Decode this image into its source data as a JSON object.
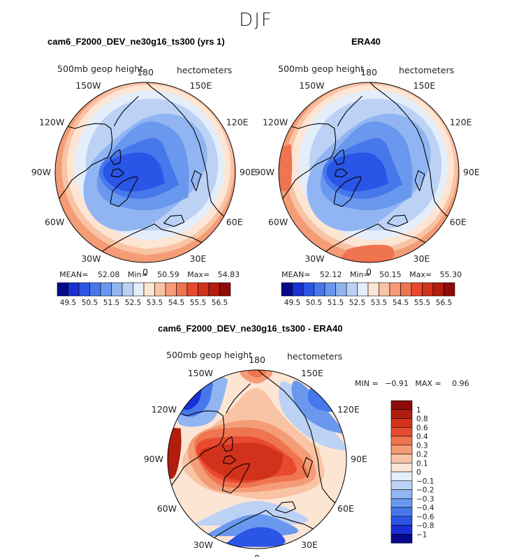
{
  "figure": {
    "title": "DJF",
    "panels": [
      {
        "title": "cam6_F2000_DEV_ne30g16_ts300 (yrs 1)",
        "variable": "500mb geop height",
        "units": "hectometers",
        "stats": {
          "mean_label": "MEAN=",
          "mean": "52.08",
          "min_label": "Min=",
          "min": "50.59",
          "max_label": "Max=",
          "max": "54.83"
        }
      },
      {
        "title": "ERA40",
        "variable": "500mb geop height",
        "units": "hectometers",
        "stats": {
          "mean_label": "MEAN=",
          "mean": "52.12",
          "min_label": "Min=",
          "min": "50.15",
          "max_label": "Max=",
          "max": "55.30"
        }
      },
      {
        "title": "cam6_F2000_DEV_ne30g16_ts300 - ERA40",
        "variable": "500mb geop height",
        "units": "hectometers",
        "stats": {
          "min_label": "MIN =",
          "min": "−0.91",
          "max_label": "MAX =",
          "max": "0.96"
        }
      }
    ],
    "lon_labels": [
      "180",
      "150E",
      "120E",
      "90E",
      "60E",
      "30E",
      "0",
      "30W",
      "60W",
      "90W",
      "120W",
      "150W"
    ]
  },
  "chart_data": [
    {
      "type": "heatmap",
      "projection": "north-polar-stereographic",
      "title": "cam6_F2000_DEV_ne30g16_ts300 (yrs 1)",
      "variable": "500mb geop height",
      "units": "hectometers",
      "mean": 52.08,
      "min": 50.59,
      "max": 54.83,
      "colorbar_ticks": [
        "49.5",
        "50.5",
        "51.5",
        "52.5",
        "53.5",
        "54.5",
        "55.5",
        "56.5"
      ],
      "colorbar_colors": [
        "#08088c",
        "#1a2fd6",
        "#2a55e6",
        "#4678ec",
        "#6a98ef",
        "#91b5f2",
        "#bcd2f5",
        "#e4eefb",
        "#fde5d4",
        "#f9c3a5",
        "#f49c76",
        "#ef7450",
        "#e94a2f",
        "#d2321b",
        "#b11d0f",
        "#8e0b07"
      ]
    },
    {
      "type": "heatmap",
      "projection": "north-polar-stereographic",
      "title": "ERA40",
      "variable": "500mb geop height",
      "units": "hectometers",
      "mean": 52.12,
      "min": 50.15,
      "max": 55.3,
      "colorbar_ticks": [
        "49.5",
        "50.5",
        "51.5",
        "52.5",
        "53.5",
        "54.5",
        "55.5",
        "56.5"
      ],
      "colorbar_colors": [
        "#08088c",
        "#1a2fd6",
        "#2a55e6",
        "#4678ec",
        "#6a98ef",
        "#91b5f2",
        "#bcd2f5",
        "#e4eefb",
        "#fde5d4",
        "#f9c3a5",
        "#f49c76",
        "#ef7450",
        "#e94a2f",
        "#d2321b",
        "#b11d0f",
        "#8e0b07"
      ]
    },
    {
      "type": "heatmap",
      "projection": "north-polar-stereographic",
      "title": "cam6_F2000_DEV_ne30g16_ts300 - ERA40",
      "variable": "500mb geop height",
      "units": "hectometers",
      "min": -0.91,
      "max": 0.96,
      "colorbar_ticks": [
        "1",
        "0.8",
        "0.6",
        "0.4",
        "0.3",
        "0.2",
        "0.1",
        "0",
        "−0.1",
        "−0.2",
        "−0.3",
        "−0.4",
        "−0.6",
        "−0.8",
        "−1"
      ],
      "colorbar_colors": [
        "#8e0b07",
        "#b11d0f",
        "#d2321b",
        "#e94a2f",
        "#ef7450",
        "#f49c76",
        "#f9c3a5",
        "#fde5d4",
        "#e4eefb",
        "#bcd2f5",
        "#91b5f2",
        "#6a98ef",
        "#4678ec",
        "#2a55e6",
        "#1a2fd6",
        "#08088c"
      ]
    }
  ]
}
